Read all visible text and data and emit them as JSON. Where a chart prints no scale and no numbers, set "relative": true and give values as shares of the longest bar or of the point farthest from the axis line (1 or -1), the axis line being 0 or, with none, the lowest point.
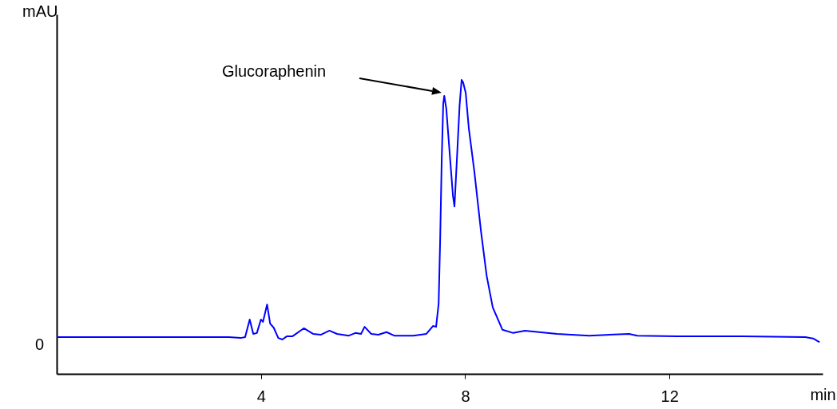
{
  "chart_data": {
    "type": "line",
    "relative": true,
    "xlabel": "min",
    "ylabel": "mAU",
    "xlim": [
      0,
      15
    ],
    "xticks": [
      4,
      8,
      12
    ],
    "grid": false,
    "marker": "none",
    "line_style": "solid",
    "x": [
      0,
      3.37,
      3.6,
      3.69,
      3.78,
      3.85,
      3.92,
      4.0,
      4.04,
      4.12,
      4.18,
      4.25,
      4.34,
      4.42,
      4.51,
      4.62,
      4.84,
      5.02,
      5.17,
      5.34,
      5.49,
      5.72,
      5.85,
      5.96,
      6.03,
      6.16,
      6.3,
      6.46,
      6.61,
      6.98,
      7.24,
      7.37,
      7.43,
      7.48,
      7.51,
      7.54,
      7.57,
      7.59,
      7.63,
      7.7,
      7.76,
      7.79,
      7.84,
      7.89,
      7.93,
      7.96,
      8.01,
      8.07,
      8.18,
      8.31,
      8.42,
      8.54,
      8.73,
      8.94,
      9.17,
      9.8,
      10.43,
      11.21,
      11.37,
      12.15,
      13.41,
      14.66,
      14.82,
      14.94
    ],
    "series": [
      {
        "color": "#0000ff",
        "values": [
          0.125,
          0.125,
          0.122,
          0.125,
          0.185,
          0.136,
          0.139,
          0.185,
          0.177,
          0.236,
          0.171,
          0.157,
          0.122,
          0.117,
          0.128,
          0.128,
          0.155,
          0.136,
          0.133,
          0.147,
          0.136,
          0.13,
          0.139,
          0.136,
          0.16,
          0.136,
          0.133,
          0.142,
          0.13,
          0.13,
          0.136,
          0.163,
          0.16,
          0.239,
          0.457,
          0.728,
          0.919,
          0.946,
          0.902,
          0.742,
          0.606,
          0.57,
          0.738,
          0.913,
          1.0,
          0.991,
          0.956,
          0.837,
          0.687,
          0.484,
          0.334,
          0.226,
          0.15,
          0.139,
          0.147,
          0.136,
          0.13,
          0.136,
          0.13,
          0.128,
          0.128,
          0.125,
          0.12,
          0.108
        ]
      }
    ],
    "annotations": [
      "Glucoraphenin",
      "0"
    ]
  }
}
